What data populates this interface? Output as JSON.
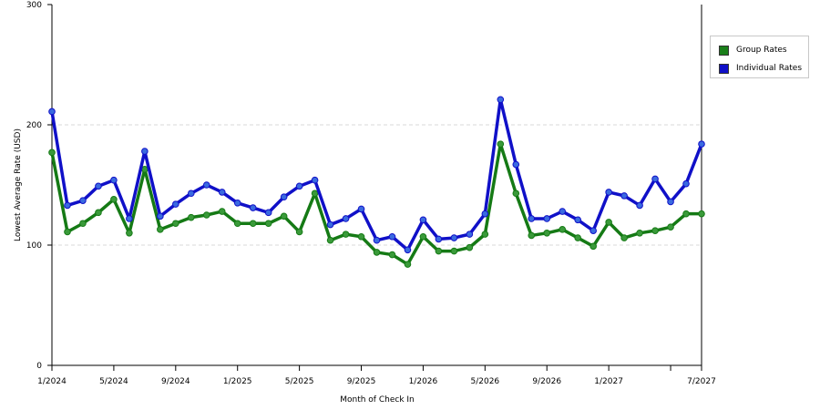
{
  "chart_data": {
    "type": "line",
    "title": "",
    "xlabel": "Month of Check In",
    "ylabel": "Lowest Average Rate (USD)",
    "ylim": [
      0,
      300
    ],
    "yticks": [
      0,
      100,
      200,
      300
    ],
    "grid": true,
    "legend_position": "right",
    "x": [
      "1/2024",
      "2/2024",
      "3/2024",
      "4/2024",
      "5/2024",
      "6/2024",
      "7/2024",
      "8/2024",
      "9/2024",
      "10/2024",
      "11/2024",
      "12/2024",
      "1/2025",
      "2/2025",
      "3/2025",
      "4/2025",
      "5/2025",
      "6/2025",
      "7/2025",
      "8/2025",
      "9/2025",
      "10/2025",
      "11/2025",
      "12/2025",
      "1/2026",
      "2/2026",
      "3/2026",
      "4/2026",
      "5/2026",
      "6/2026",
      "7/2026",
      "8/2026",
      "9/2026",
      "10/2026",
      "11/2026",
      "12/2026",
      "1/2027",
      "2/2027",
      "3/2027",
      "4/2027",
      "5/2027",
      "6/2027",
      "7/2027"
    ],
    "xtick_labels": [
      "1/2024",
      "5/2024",
      "9/2024",
      "1/2025",
      "5/2025",
      "9/2025",
      "1/2026",
      "5/2026",
      "9/2026",
      "1/2027",
      "7/2027"
    ],
    "series": [
      {
        "name": "Group Rates",
        "color": "#157a15",
        "marker_color": "#3a9a3a",
        "values": [
          177,
          111,
          118,
          127,
          138,
          110,
          163,
          113,
          118,
          123,
          125,
          128,
          118,
          118,
          118,
          124,
          111,
          143,
          104,
          109,
          107,
          94,
          92,
          84,
          107,
          95,
          95,
          98,
          109,
          184,
          143,
          108,
          110,
          113,
          106,
          99,
          119,
          106,
          110,
          112,
          115,
          126,
          126
        ]
      },
      {
        "name": "Individual Rates",
        "color": "#1010c8",
        "marker_color": "#3a6ae0",
        "values": [
          211,
          133,
          137,
          149,
          154,
          122,
          178,
          124,
          134,
          143,
          150,
          144,
          135,
          131,
          127,
          140,
          149,
          154,
          117,
          122,
          130,
          104,
          107,
          96,
          121,
          105,
          106,
          109,
          126,
          221,
          167,
          122,
          122,
          128,
          121,
          112,
          144,
          141,
          133,
          155,
          136,
          151,
          184
        ]
      }
    ]
  }
}
